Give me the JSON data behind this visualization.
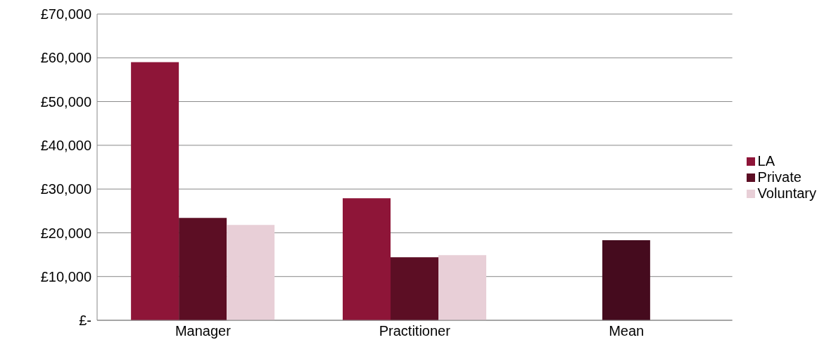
{
  "chart_data": {
    "type": "bar",
    "categories": [
      "Manager",
      "Practitioner",
      "Mean"
    ],
    "series": [
      {
        "name": "LA",
        "color": "#8e1538",
        "values": [
          59000,
          27900,
          null
        ]
      },
      {
        "name": "Private",
        "color": "#5c0e24",
        "colors": [
          "#5c0e24",
          "#5c0e24",
          "#450b1e"
        ],
        "values": [
          23400,
          14400,
          18300
        ]
      },
      {
        "name": "Voluntary",
        "color": "#e8cfd7",
        "values": [
          21800,
          14900,
          null
        ]
      }
    ],
    "ylim": [
      0,
      70000
    ],
    "yticks": [
      {
        "value": 0,
        "label": "£-"
      },
      {
        "value": 10000,
        "label": "£10,000"
      },
      {
        "value": 20000,
        "label": "£20,000"
      },
      {
        "value": 30000,
        "label": "£30,000"
      },
      {
        "value": 40000,
        "label": "£40,000"
      },
      {
        "value": 50000,
        "label": "£50,000"
      },
      {
        "value": 60000,
        "label": "£60,000"
      },
      {
        "value": 70000,
        "label": "£70,000"
      }
    ],
    "grid": "y",
    "legend": "right"
  }
}
